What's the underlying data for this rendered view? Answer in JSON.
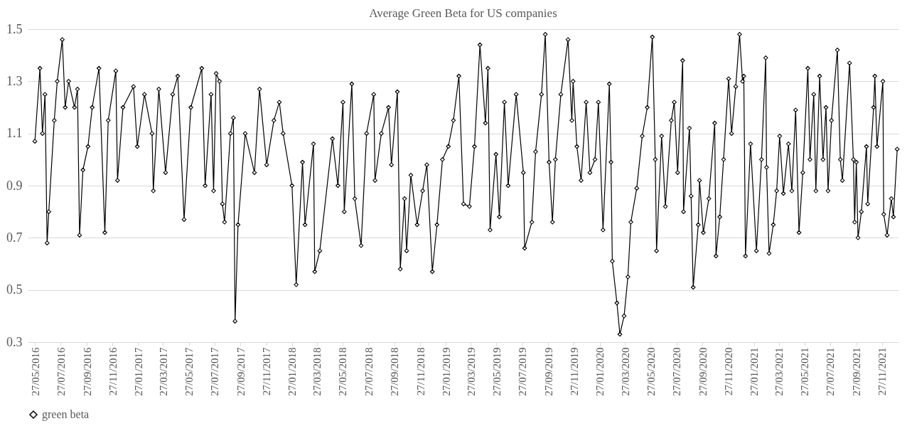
{
  "chart_data": {
    "type": "line",
    "title": "Average Green Beta for US companies",
    "x": [
      "2016-05-27",
      "2016-06-08",
      "2016-06-14",
      "2016-06-20",
      "2016-06-25",
      "2016-06-29",
      "2016-07-12",
      "2016-07-19",
      "2016-07-31",
      "2016-08-07",
      "2016-08-15",
      "2016-08-29",
      "2016-09-05",
      "2016-09-10",
      "2016-09-18",
      "2016-09-30",
      "2016-10-10",
      "2016-10-26",
      "2016-11-09",
      "2016-11-17",
      "2016-12-05",
      "2016-12-09",
      "2016-12-22",
      "2017-01-16",
      "2017-01-25",
      "2017-02-11",
      "2017-03-01",
      "2017-03-04",
      "2017-03-17",
      "2017-04-02",
      "2017-04-19",
      "2017-05-01",
      "2017-05-16",
      "2017-06-01",
      "2017-06-27",
      "2017-07-05",
      "2017-07-19",
      "2017-07-25",
      "2017-07-31",
      "2017-08-08",
      "2017-08-15",
      "2017-08-20",
      "2017-09-03",
      "2017-09-10",
      "2017-09-14",
      "2017-09-21",
      "2017-10-08",
      "2017-10-30",
      "2017-11-11",
      "2017-11-28",
      "2017-12-15",
      "2017-12-28",
      "2018-01-06",
      "2018-01-27",
      "2018-02-06",
      "2018-02-21",
      "2018-02-27",
      "2018-03-19",
      "2018-03-22",
      "2018-04-03",
      "2018-05-03",
      "2018-05-16",
      "2018-05-28",
      "2018-05-31",
      "2018-06-18",
      "2018-06-25",
      "2018-07-10",
      "2018-07-23",
      "2018-08-09",
      "2018-08-12",
      "2018-08-27",
      "2018-09-13",
      "2018-09-20",
      "2018-10-04",
      "2018-10-11",
      "2018-10-21",
      "2018-10-26",
      "2018-11-05",
      "2018-11-20",
      "2018-12-03",
      "2018-12-13",
      "2018-12-26",
      "2019-01-06",
      "2019-01-19",
      "2019-02-02",
      "2019-02-14",
      "2019-02-27",
      "2019-03-10",
      "2019-03-24",
      "2019-04-05",
      "2019-04-18",
      "2019-05-01",
      "2019-05-07",
      "2019-05-12",
      "2019-05-26",
      "2019-06-03",
      "2019-06-15",
      "2019-06-24",
      "2019-07-13",
      "2019-07-30",
      "2019-08-02",
      "2019-08-19",
      "2019-08-28",
      "2019-09-11",
      "2019-09-20",
      "2019-09-29",
      "2019-10-07",
      "2019-10-14",
      "2019-10-27",
      "2019-11-13",
      "2019-11-22",
      "2019-11-25",
      "2019-12-04",
      "2019-12-14",
      "2019-12-26",
      "2020-01-04",
      "2020-01-16",
      "2020-01-24",
      "2020-02-04",
      "2020-02-19",
      "2020-02-23",
      "2020-02-26",
      "2020-03-08",
      "2020-03-15",
      "2020-03-25",
      "2020-04-03",
      "2020-04-10",
      "2020-04-24",
      "2020-05-07",
      "2020-05-19",
      "2020-05-31",
      "2020-06-07",
      "2020-06-10",
      "2020-06-22",
      "2020-07-01",
      "2020-07-15",
      "2020-07-22",
      "2020-07-30",
      "2020-08-11",
      "2020-08-13",
      "2020-08-27",
      "2020-08-31",
      "2020-09-05",
      "2020-09-17",
      "2020-09-20",
      "2020-09-29",
      "2020-10-12",
      "2020-10-26",
      "2020-10-29",
      "2020-11-07",
      "2020-11-16",
      "2020-11-28",
      "2020-12-05",
      "2020-12-15",
      "2020-12-24",
      "2020-12-31",
      "2021-01-03",
      "2021-01-07",
      "2021-01-19",
      "2021-02-02",
      "2021-02-14",
      "2021-02-24",
      "2021-02-26",
      "2021-03-04",
      "2021-03-14",
      "2021-03-22",
      "2021-03-29",
      "2021-04-07",
      "2021-04-19",
      "2021-04-27",
      "2021-05-06",
      "2021-05-14",
      "2021-05-23",
      "2021-06-04",
      "2021-06-09",
      "2021-06-18",
      "2021-06-23",
      "2021-07-02",
      "2021-07-10",
      "2021-07-17",
      "2021-07-22",
      "2021-07-30",
      "2021-08-13",
      "2021-08-20",
      "2021-08-25",
      "2021-09-11",
      "2021-09-20",
      "2021-09-23",
      "2021-09-27",
      "2021-10-01",
      "2021-10-09",
      "2021-10-21",
      "2021-10-24",
      "2021-11-07",
      "2021-11-10",
      "2021-11-15",
      "2021-11-29",
      "2021-12-01",
      "2021-12-09",
      "2021-12-19",
      "2021-12-24",
      "2022-01-02"
    ],
    "series": [
      {
        "name": "green beta",
        "color": "#000000",
        "values": [
          1.07,
          1.35,
          1.1,
          1.25,
          0.68,
          0.8,
          1.15,
          1.3,
          1.46,
          1.2,
          1.3,
          1.2,
          1.27,
          0.71,
          0.96,
          1.05,
          1.2,
          1.35,
          0.72,
          1.15,
          1.34,
          0.92,
          1.2,
          1.28,
          1.05,
          1.25,
          1.1,
          0.88,
          1.27,
          0.95,
          1.25,
          1.32,
          0.77,
          1.2,
          1.35,
          0.9,
          1.25,
          0.88,
          1.33,
          1.3,
          0.83,
          0.76,
          1.1,
          1.16,
          0.38,
          0.75,
          1.1,
          0.95,
          1.27,
          0.98,
          1.15,
          1.22,
          1.1,
          0.9,
          0.52,
          0.99,
          0.75,
          1.06,
          0.57,
          0.65,
          1.08,
          0.9,
          1.22,
          0.8,
          1.29,
          0.85,
          0.67,
          1.1,
          1.25,
          0.92,
          1.1,
          1.2,
          0.98,
          1.26,
          0.58,
          0.85,
          0.65,
          0.94,
          0.75,
          0.88,
          0.98,
          0.57,
          0.75,
          1.0,
          1.05,
          1.15,
          1.32,
          0.83,
          0.82,
          1.05,
          1.44,
          1.14,
          1.35,
          0.73,
          1.02,
          0.78,
          1.22,
          0.9,
          1.25,
          0.95,
          0.66,
          0.76,
          1.03,
          1.25,
          1.48,
          0.99,
          0.76,
          1.0,
          1.25,
          1.46,
          1.15,
          1.3,
          1.05,
          0.92,
          1.22,
          0.95,
          1.0,
          1.22,
          0.73,
          1.29,
          0.99,
          0.61,
          0.45,
          0.33,
          0.4,
          0.55,
          0.76,
          0.89,
          1.09,
          1.2,
          1.47,
          1.0,
          0.65,
          1.09,
          0.82,
          1.15,
          1.22,
          0.95,
          1.38,
          0.8,
          1.12,
          0.86,
          0.51,
          0.75,
          0.92,
          0.72,
          0.85,
          1.14,
          0.63,
          0.78,
          1.0,
          1.31,
          1.1,
          1.28,
          1.48,
          1.3,
          1.32,
          0.63,
          1.06,
          0.65,
          1.0,
          1.39,
          0.97,
          0.64,
          0.75,
          0.88,
          1.09,
          0.87,
          1.06,
          0.88,
          1.19,
          0.72,
          0.95,
          1.35,
          1.0,
          1.25,
          0.88,
          1.32,
          1.0,
          1.2,
          0.88,
          1.15,
          1.42,
          1.0,
          0.92,
          1.37,
          1.0,
          0.76,
          0.99,
          0.7,
          0.8,
          1.05,
          0.83,
          1.2,
          1.32,
          1.05,
          1.3,
          0.79,
          0.71,
          0.85,
          0.78,
          1.04
        ]
      }
    ],
    "xlim": [
      "2016-05-10",
      "2022-01-05"
    ],
    "xticks": [
      {
        "value": "2016-05-27",
        "label": "27/05/2016"
      },
      {
        "value": "2016-07-27",
        "label": "27/07/2016"
      },
      {
        "value": "2016-09-27",
        "label": "27/09/2016"
      },
      {
        "value": "2016-11-27",
        "label": "27/11/2016"
      },
      {
        "value": "2017-01-27",
        "label": "27/01/2017"
      },
      {
        "value": "2017-03-27",
        "label": "27/03/2017"
      },
      {
        "value": "2017-05-27",
        "label": "27/05/2017"
      },
      {
        "value": "2017-07-27",
        "label": "27/07/2017"
      },
      {
        "value": "2017-09-27",
        "label": "27/09/2017"
      },
      {
        "value": "2017-11-27",
        "label": "27/11/2017"
      },
      {
        "value": "2018-01-27",
        "label": "27/01/2018"
      },
      {
        "value": "2018-03-27",
        "label": "27/03/2018"
      },
      {
        "value": "2018-05-27",
        "label": "27/05/2018"
      },
      {
        "value": "2018-07-27",
        "label": "27/07/2018"
      },
      {
        "value": "2018-09-27",
        "label": "27/09/2018"
      },
      {
        "value": "2018-11-27",
        "label": "27/11/2018"
      },
      {
        "value": "2019-01-27",
        "label": "27/01/2019"
      },
      {
        "value": "2019-03-27",
        "label": "27/03/2019"
      },
      {
        "value": "2019-05-27",
        "label": "27/05/2019"
      },
      {
        "value": "2019-07-27",
        "label": "27/07/2019"
      },
      {
        "value": "2019-09-27",
        "label": "27/09/2019"
      },
      {
        "value": "2019-11-27",
        "label": "27/11/2019"
      },
      {
        "value": "2020-01-27",
        "label": "27/01/2020"
      },
      {
        "value": "2020-03-27",
        "label": "27/03/2020"
      },
      {
        "value": "2020-05-27",
        "label": "27/05/2020"
      },
      {
        "value": "2020-07-27",
        "label": "27/07/2020"
      },
      {
        "value": "2020-09-27",
        "label": "27/09/2020"
      },
      {
        "value": "2020-11-27",
        "label": "27/11/2020"
      },
      {
        "value": "2021-01-27",
        "label": "27/01/2021"
      },
      {
        "value": "2021-03-27",
        "label": "27/03/2021"
      },
      {
        "value": "2021-05-27",
        "label": "27/05/2021"
      },
      {
        "value": "2021-07-27",
        "label": "27/07/2021"
      },
      {
        "value": "2021-09-27",
        "label": "27/09/2021"
      },
      {
        "value": "2021-11-27",
        "label": "27/11/2021"
      }
    ],
    "ylim": [
      0.3,
      1.5
    ],
    "yticks": [
      0.3,
      0.5,
      0.7,
      0.9,
      1.1,
      1.3,
      1.5
    ],
    "grid": "y",
    "legend": "bottom",
    "marker": "diamond",
    "line_style": "solid"
  }
}
